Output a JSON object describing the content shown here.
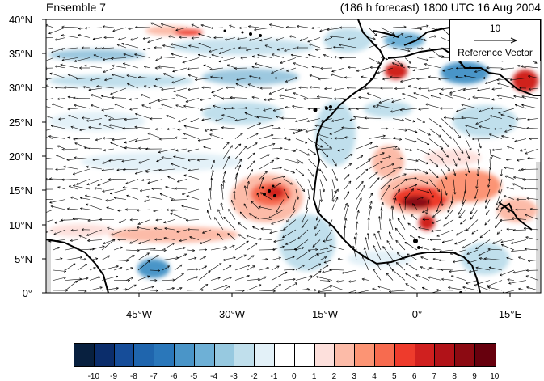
{
  "title_left": "Ensemble 7",
  "title_right": "(186 h forecast) 1800 UTC 16 Aug 2004",
  "lat_labels": [
    "40°N",
    "35°N",
    "30°N",
    "25°N",
    "20°N",
    "15°N",
    "10°N",
    "5°N",
    "0°"
  ],
  "lon_labels": [
    "45°W",
    "30°W",
    "15°W",
    "0°",
    "15°E"
  ],
  "reference_vector": {
    "magnitude": "10",
    "label": "Reference Vector"
  },
  "colorbar": {
    "ticks": [
      "-10",
      "-9",
      "-8",
      "-7",
      "-6",
      "-5",
      "-4",
      "-3",
      "-2",
      "-1",
      "0",
      "1",
      "2",
      "3",
      "4",
      "5",
      "6",
      "7",
      "8",
      "9",
      "10"
    ],
    "colors": [
      "#08203f",
      "#0b2d6b",
      "#164d99",
      "#1f65ad",
      "#2a77ba",
      "#4a95c8",
      "#6eb0d6",
      "#97c9e0",
      "#c0dfec",
      "#e3f1f8",
      "#ffffff",
      "#ffffff",
      "#fde0dc",
      "#fcbba8",
      "#fc9474",
      "#f76b4f",
      "#ee3b2c",
      "#d0201f",
      "#b11218",
      "#8c0a12",
      "#67000d"
    ]
  },
  "map": {
    "extent": {
      "lon_min": -60,
      "lon_max": 20,
      "lat_min": 0,
      "lat_max": 40
    },
    "colors": {
      "land_missing": "#d8d8d8",
      "coast": "#000000",
      "vector": "#000000",
      "islands": "#000000"
    }
  }
}
